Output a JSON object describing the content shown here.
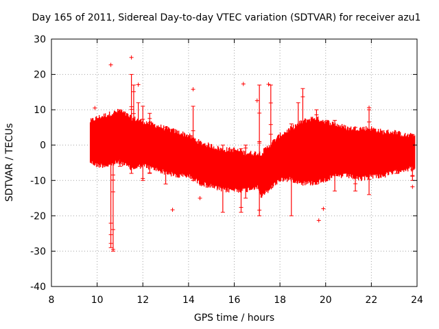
{
  "chart_data": {
    "type": "scatter",
    "title": "Day 165 of 2011, Sidereal Day-to-day VTEC variation (SDTVAR) for receiver azu1",
    "xlabel": "GPS time / hours",
    "ylabel": "SDTVAR / TECUs",
    "xlim": [
      8,
      24
    ],
    "ylim": [
      -40,
      30
    ],
    "xticks": [
      8,
      10,
      12,
      14,
      16,
      18,
      20,
      22,
      24
    ],
    "yticks": [
      -40,
      -30,
      -20,
      -10,
      0,
      10,
      20,
      30
    ],
    "grid": true,
    "marker": "+",
    "color": "#ff0000",
    "series": [
      {
        "name": "azu1",
        "band": {
          "x": [
            9.7,
            10.0,
            10.5,
            11.0,
            11.5,
            12.0,
            12.5,
            13.0,
            13.5,
            14.0,
            14.5,
            15.0,
            15.5,
            16.0,
            16.5,
            17.0,
            17.2,
            17.5,
            18.0,
            18.5,
            19.0,
            19.5,
            20.0,
            20.5,
            21.0,
            21.5,
            22.0,
            22.5,
            23.0,
            23.5,
            23.9
          ],
          "low": [
            -4,
            -5,
            -5,
            -4,
            -6,
            -5,
            -6,
            -7,
            -8,
            -8,
            -10,
            -11,
            -12,
            -12,
            -12,
            -11,
            -14,
            -12,
            -9,
            -9,
            -10,
            -10,
            -9,
            -8,
            -8,
            -9,
            -8,
            -8,
            -7,
            -6,
            -6
          ],
          "high": [
            6,
            7,
            8,
            9,
            7,
            6,
            5,
            4,
            3,
            2,
            0,
            -1,
            -2,
            -2,
            -3,
            -3,
            -3,
            -1,
            2,
            4,
            6,
            7,
            6,
            5,
            4,
            4,
            4,
            3,
            3,
            2,
            2
          ]
        },
        "spikes": [
          {
            "x": 10.6,
            "low": -29,
            "high": 4
          },
          {
            "x": 10.7,
            "low": -30,
            "high": 2
          },
          {
            "x": 11.0,
            "low": -6,
            "high": 10
          },
          {
            "x": 11.5,
            "low": -8,
            "high": 20
          },
          {
            "x": 11.6,
            "low": -5,
            "high": 17
          },
          {
            "x": 11.8,
            "low": -6,
            "high": 12
          },
          {
            "x": 12.0,
            "low": -10,
            "high": 11
          },
          {
            "x": 12.3,
            "low": -8,
            "high": 9
          },
          {
            "x": 13.0,
            "low": -11,
            "high": 5
          },
          {
            "x": 14.2,
            "low": -10,
            "high": 11
          },
          {
            "x": 15.5,
            "low": -19,
            "high": 0
          },
          {
            "x": 16.3,
            "low": -19,
            "high": -1
          },
          {
            "x": 16.5,
            "low": -15,
            "high": 0
          },
          {
            "x": 17.1,
            "low": -20,
            "high": 17
          },
          {
            "x": 17.6,
            "low": -12,
            "high": 17
          },
          {
            "x": 18.5,
            "low": -20,
            "high": 6
          },
          {
            "x": 18.8,
            "low": -10,
            "high": 12
          },
          {
            "x": 19.0,
            "low": -8,
            "high": 16
          },
          {
            "x": 19.6,
            "low": -11,
            "high": 10
          },
          {
            "x": 20.4,
            "low": -13,
            "high": 7
          },
          {
            "x": 21.3,
            "low": -13,
            "high": 5
          },
          {
            "x": 21.9,
            "low": -14,
            "high": 10
          },
          {
            "x": 23.1,
            "low": -8,
            "high": 3
          },
          {
            "x": 23.8,
            "low": -10,
            "high": 3
          }
        ],
        "outliers": [
          {
            "x": 9.9,
            "y": 10.5
          },
          {
            "x": 10.6,
            "y": 22.7
          },
          {
            "x": 10.7,
            "y": -29.5
          },
          {
            "x": 11.5,
            "y": 24.8
          },
          {
            "x": 11.8,
            "y": 17.1
          },
          {
            "x": 13.3,
            "y": -18.3
          },
          {
            "x": 14.2,
            "y": 15.8
          },
          {
            "x": 14.5,
            "y": -15.0
          },
          {
            "x": 16.4,
            "y": 17.3
          },
          {
            "x": 17.0,
            "y": 12.6
          },
          {
            "x": 17.1,
            "y": -18.4
          },
          {
            "x": 17.5,
            "y": 17.2
          },
          {
            "x": 19.7,
            "y": -21.3
          },
          {
            "x": 19.9,
            "y": -18.0
          },
          {
            "x": 21.9,
            "y": 10.6
          },
          {
            "x": 23.8,
            "y": -11.8
          }
        ]
      }
    ]
  }
}
